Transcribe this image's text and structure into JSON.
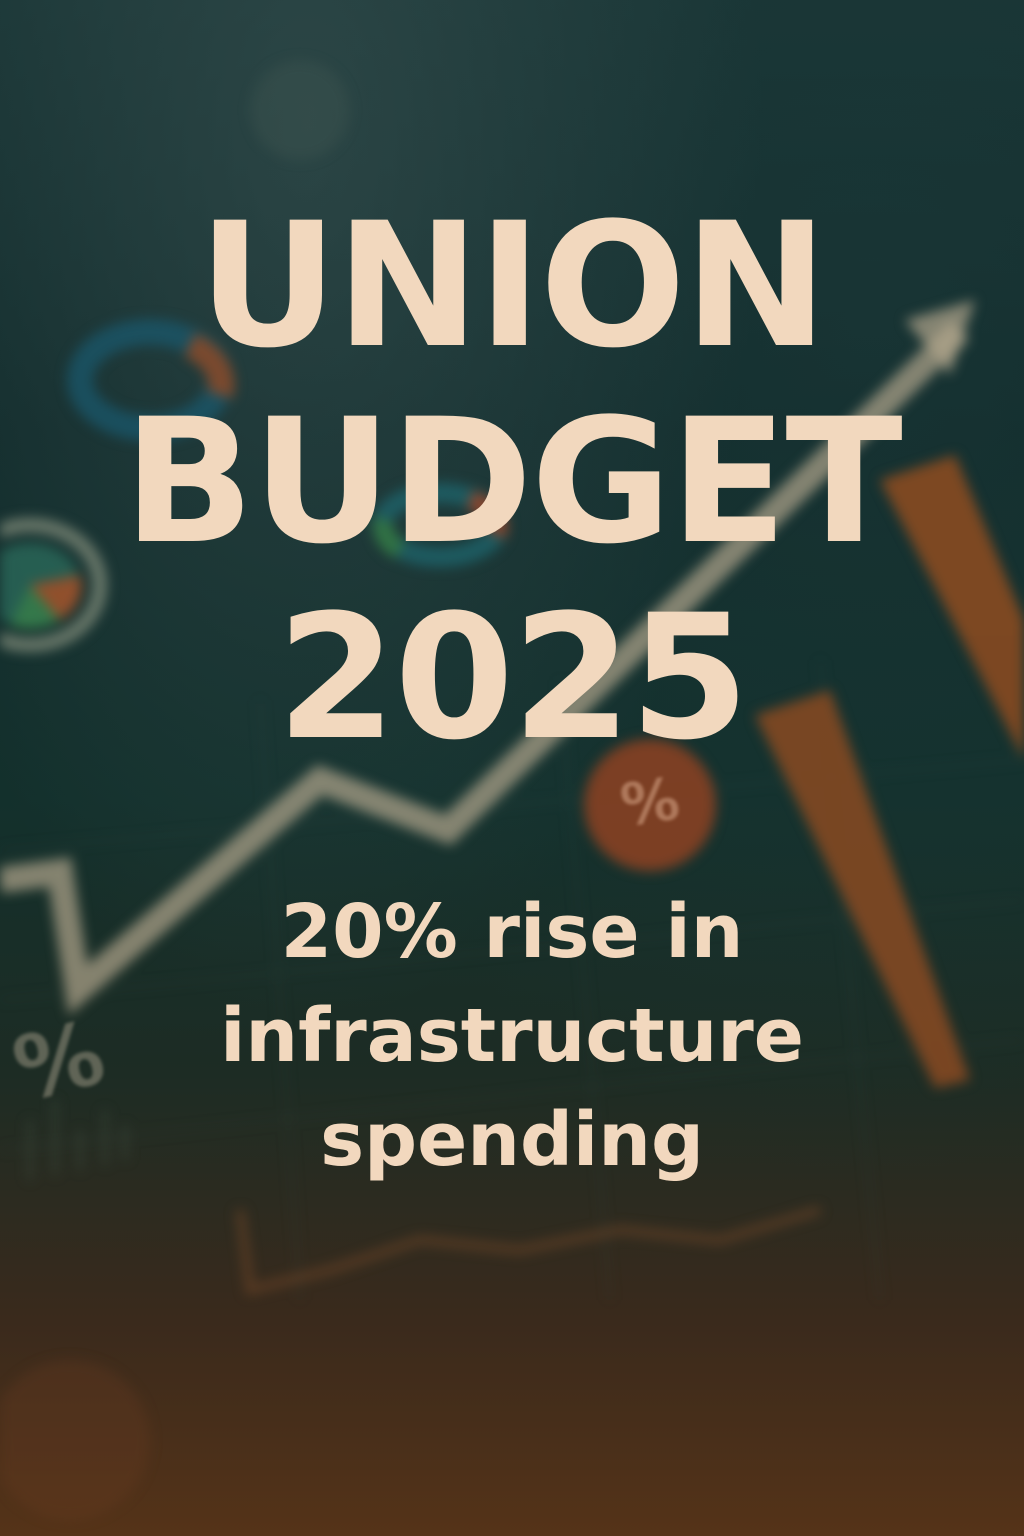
{
  "poster": {
    "title_lines": [
      "UNION",
      "BUDGET",
      "2025"
    ],
    "subtitle_lines": [
      "20% rise in",
      "infrastructure",
      "spending"
    ],
    "background_percent_symbols": [
      "%",
      "%"
    ]
  },
  "colors": {
    "text": "#f2d8be",
    "background_top": "#183434",
    "background_bottom": "#553318",
    "accent_orange": "#a8542a"
  },
  "background_icons": [
    "line-chart-icon",
    "bar-chart-icon",
    "pie-chart-icon",
    "percent-badge-icon",
    "upward-arrow-icon"
  ]
}
